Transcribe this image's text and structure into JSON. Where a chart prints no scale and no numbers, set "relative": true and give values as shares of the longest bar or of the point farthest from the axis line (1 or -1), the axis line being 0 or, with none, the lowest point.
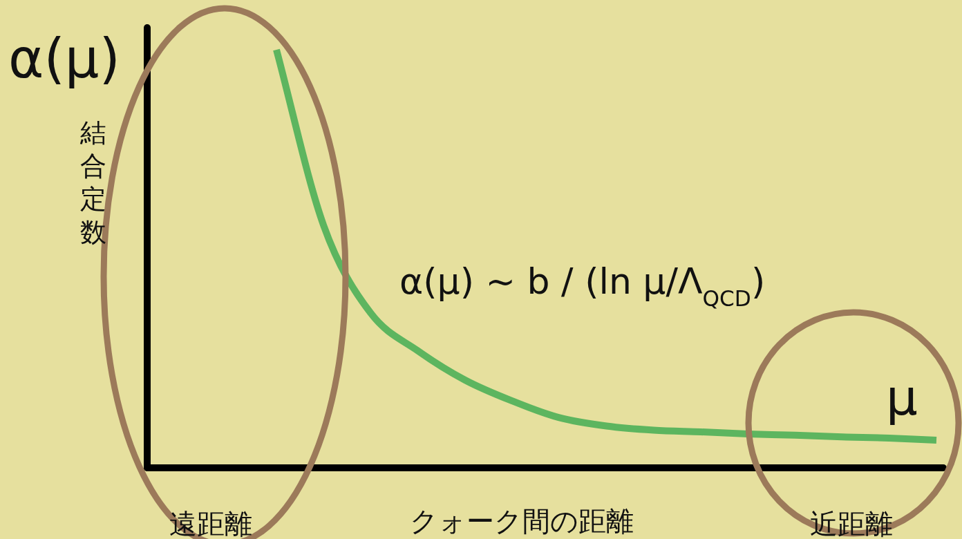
{
  "chart_data": {
    "type": "line",
    "relative": true,
    "xlabel": "クォーク間の距離",
    "categories": [
      null,
      null,
      null,
      null,
      null,
      null,
      null,
      null,
      null,
      null,
      null,
      null,
      null,
      null,
      null
    ],
    "series": [
      {
        "color": "#5db55f",
        "values": [
          1,
          0.58,
          0.37,
          0.28,
          0.21,
          0.16,
          0.12,
          0.1,
          0.09,
          0.086,
          0.081,
          0.078,
          0.074,
          0.071,
          0.066
        ]
      }
    ],
    "marker": "none",
    "line_style": "solid",
    "annotations": [
      "α(μ)",
      "μ",
      "遠距離",
      "近距離",
      "α(μ) ~ b / (ln μ/Λ$_{QCD}$)",
      "結合定数"
    ]
  }
}
